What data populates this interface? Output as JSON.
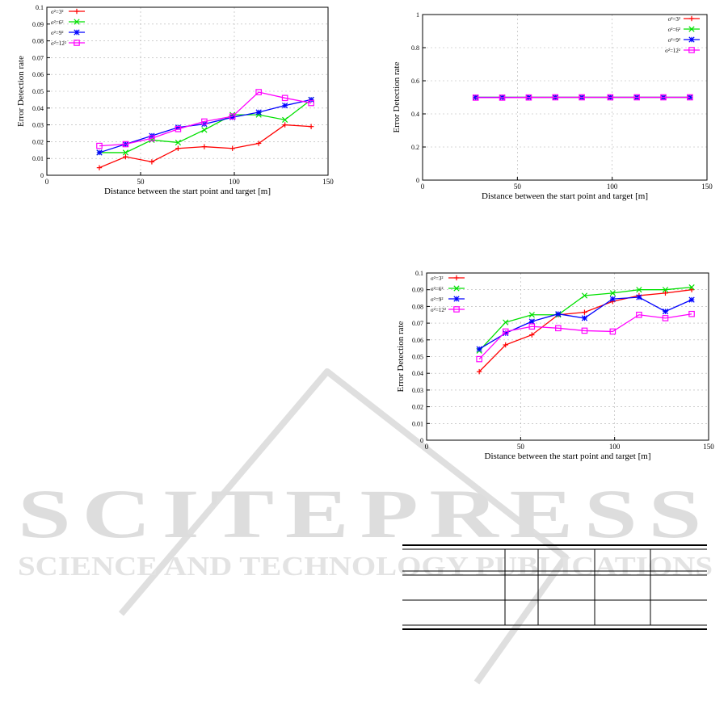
{
  "watermark": {
    "main": "SCITEPRESS",
    "sub": "SCIENCE AND TECHNOLOGY PUBLICATIONS",
    "color": "#d9d9d9"
  },
  "chart_data": [
    {
      "type": "line",
      "xlabel": "Distance between the start point and target [m]",
      "ylabel": "Error Detection rate",
      "xlim": [
        0,
        150
      ],
      "ylim": [
        0,
        0.1
      ],
      "xticks": [
        "0",
        "50",
        "100",
        "150"
      ],
      "yticks": [
        "0",
        "0.01",
        "0.02",
        "0.03",
        "0.04",
        "0.05",
        "0.06",
        "0.07",
        "0.08",
        "0.09",
        "0.1"
      ],
      "grid": true,
      "legend": "top-left",
      "x": [
        28,
        42,
        56,
        70,
        84,
        99,
        113,
        127,
        141
      ],
      "series": [
        {
          "name": "σ²=3²",
          "color": "#ff0000",
          "marker": "plus",
          "values": [
            0.0045,
            0.011,
            0.008,
            0.016,
            0.017,
            0.016,
            0.019,
            0.03,
            0.029
          ]
        },
        {
          "name": "σ²=6²",
          "color": "#00e000",
          "marker": "x",
          "values": [
            0.0135,
            0.0135,
            0.021,
            0.0195,
            0.027,
            0.036,
            0.036,
            0.033,
            0.045
          ]
        },
        {
          "name": "σ²=9²",
          "color": "#0000ff",
          "marker": "star",
          "values": [
            0.0135,
            0.0185,
            0.0235,
            0.0285,
            0.0305,
            0.0345,
            0.0375,
            0.0415,
            0.045
          ]
        },
        {
          "name": "σ²=12²",
          "color": "#ff00ff",
          "marker": "square",
          "values": [
            0.0175,
            0.0185,
            0.022,
            0.0275,
            0.032,
            0.035,
            0.0495,
            0.046,
            0.043
          ]
        }
      ]
    },
    {
      "type": "line",
      "xlabel": "Distance between the start point and target [m]",
      "ylabel": "Error Detection rate",
      "xlim": [
        0,
        150
      ],
      "ylim": [
        0,
        1
      ],
      "xticks": [
        "0",
        "50",
        "100",
        "150"
      ],
      "yticks": [
        "0",
        "0.2",
        "0.4",
        "0.6",
        "0.8",
        "1"
      ],
      "grid": true,
      "legend": "top-right",
      "x": [
        28,
        42,
        56,
        70,
        84,
        99,
        113,
        127,
        141
      ],
      "series": [
        {
          "name": "σ²=3²",
          "color": "#ff0000",
          "marker": "plus",
          "values": [
            0.5,
            0.5,
            0.5,
            0.5,
            0.5,
            0.5,
            0.5,
            0.5,
            0.5
          ]
        },
        {
          "name": "σ²=6²",
          "color": "#00e000",
          "marker": "x",
          "values": [
            0.5,
            0.5,
            0.5,
            0.5,
            0.5,
            0.5,
            0.5,
            0.5,
            0.5
          ]
        },
        {
          "name": "σ²=9²",
          "color": "#0000ff",
          "marker": "star",
          "values": [
            0.5,
            0.5,
            0.5,
            0.5,
            0.5,
            0.5,
            0.5,
            0.5,
            0.5
          ]
        },
        {
          "name": "σ²=12²",
          "color": "#ff00ff",
          "marker": "square",
          "values": [
            0.498,
            0.498,
            0.499,
            0.5,
            0.5,
            0.5,
            0.5,
            0.5,
            0.5
          ]
        }
      ]
    },
    {
      "type": "line",
      "xlabel": "Distance between the start point and target [m]",
      "ylabel": "Error Detection rate",
      "xlim": [
        0,
        150
      ],
      "ylim": [
        0,
        0.1
      ],
      "xticks": [
        "0",
        "50",
        "100",
        "150"
      ],
      "yticks": [
        "0",
        "0.01",
        "0.02",
        "0.03",
        "0.04",
        "0.05",
        "0.06",
        "0.07",
        "0.08",
        "0.09",
        "0.1"
      ],
      "grid": true,
      "legend": "top-left",
      "x": [
        28,
        42,
        56,
        70,
        84,
        99,
        113,
        127,
        141
      ],
      "series": [
        {
          "name": "σ²=3²",
          "color": "#ff0000",
          "marker": "plus",
          "values": [
            0.041,
            0.057,
            0.063,
            0.075,
            0.0765,
            0.083,
            0.0865,
            0.088,
            0.09
          ]
        },
        {
          "name": "σ²=6²",
          "color": "#00e000",
          "marker": "x",
          "values": [
            0.0535,
            0.0705,
            0.075,
            0.075,
            0.0865,
            0.088,
            0.09,
            0.09,
            0.0915
          ]
        },
        {
          "name": "σ²=9²",
          "color": "#0000ff",
          "marker": "star",
          "values": [
            0.0545,
            0.064,
            0.071,
            0.0755,
            0.073,
            0.0845,
            0.0855,
            0.077,
            0.084
          ]
        },
        {
          "name": "σ²=12²",
          "color": "#ff00ff",
          "marker": "square",
          "values": [
            0.0485,
            0.065,
            0.068,
            0.067,
            0.0655,
            0.065,
            0.075,
            0.073,
            0.0755
          ]
        }
      ]
    }
  ],
  "table": {
    "rows": 3,
    "columns": 5,
    "cells": []
  }
}
